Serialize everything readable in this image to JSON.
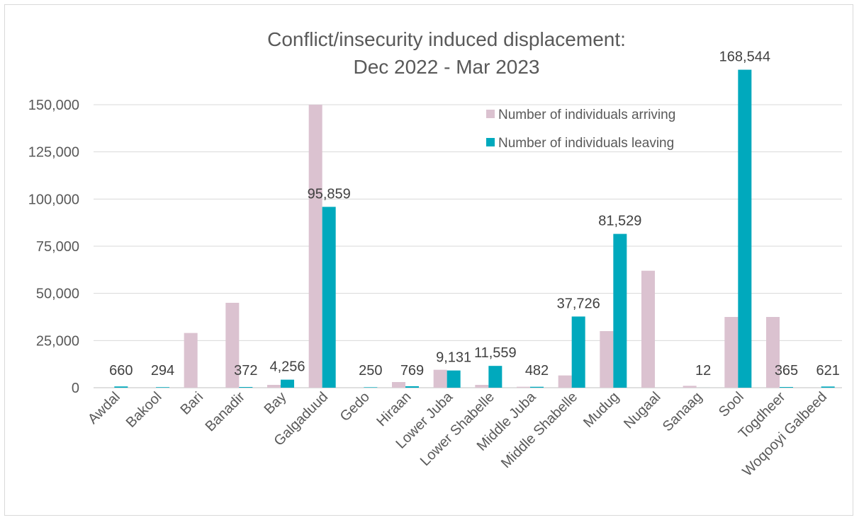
{
  "chart_data": {
    "type": "bar",
    "title": "Conflict/insecurity induced displacement:",
    "subtitle": "Dec 2022 - Mar 2023",
    "xlabel": "",
    "ylabel": "",
    "ylim": [
      0,
      175000
    ],
    "yticks": [
      0,
      25000,
      50000,
      75000,
      100000,
      125000,
      150000
    ],
    "ytick_labels": [
      "0",
      "25,000",
      "50,000",
      "75,000",
      "100,000",
      "125,000",
      "150,000"
    ],
    "grid": true,
    "legend_position": "top-right",
    "categories": [
      "Awdal",
      "Bakool",
      "Bari",
      "Banadir",
      "Bay",
      "Galgaduud",
      "Gedo",
      "Hiraan",
      "Lower Juba",
      "Lower Shabelle",
      "Middle Juba",
      "Middle Shabelle",
      "Mudug",
      "Nugaal",
      "Sanaag",
      "Sool",
      "Togdheer",
      "Woqooyi Galbeed"
    ],
    "series": [
      {
        "name": "Number of individuals arriving",
        "color": "#dbc2d0",
        "values": [
          0,
          0,
          29000,
          45000,
          1500,
          150000,
          0,
          3000,
          9500,
          1500,
          500,
          6500,
          30000,
          62000,
          1000,
          37500,
          37500,
          0
        ]
      },
      {
        "name": "Number of individuals leaving",
        "color": "#00a9bd",
        "values": [
          660,
          294,
          0,
          372,
          4256,
          95859,
          250,
          769,
          9131,
          11559,
          482,
          37726,
          81529,
          0,
          12,
          168544,
          365,
          621
        ],
        "labels": [
          "660",
          "294",
          "",
          "372",
          "4,256",
          "95,859",
          "250",
          "769",
          "9,131",
          "11,559",
          "482",
          "37,726",
          "81,529",
          "",
          "12",
          "168,544",
          "365",
          "621"
        ]
      }
    ]
  }
}
